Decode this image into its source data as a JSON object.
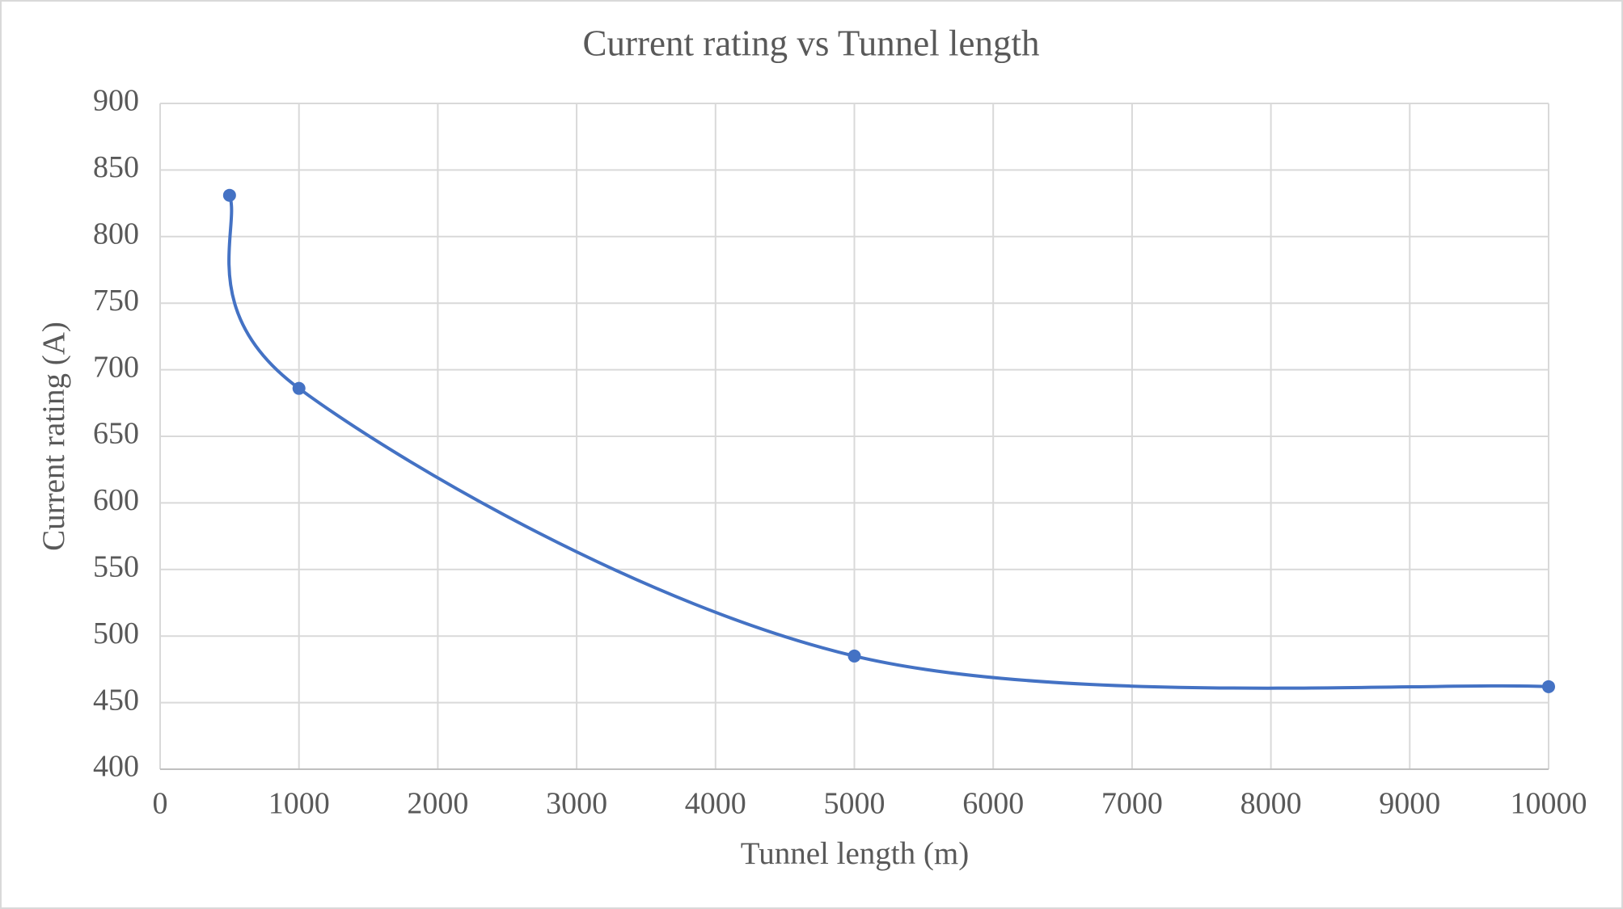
{
  "chart_data": {
    "type": "scatter",
    "title": "Current rating vs Tunnel length",
    "x_label": "Tunnel length (m)",
    "y_label": "Current rating (A)",
    "x": [
      500,
      1000,
      5000,
      10000
    ],
    "values": [
      831,
      686,
      485,
      462
    ],
    "color": "#4472c4",
    "smooth": true,
    "markers": true,
    "xlim": [
      0,
      10000
    ],
    "xticks": [
      0,
      1000,
      2000,
      3000,
      4000,
      5000,
      6000,
      7000,
      8000,
      9000,
      10000
    ],
    "ylim": [
      400,
      900
    ],
    "yticks": [
      400,
      450,
      500,
      550,
      600,
      650,
      700,
      750,
      800,
      850,
      900
    ],
    "grid": true
  }
}
